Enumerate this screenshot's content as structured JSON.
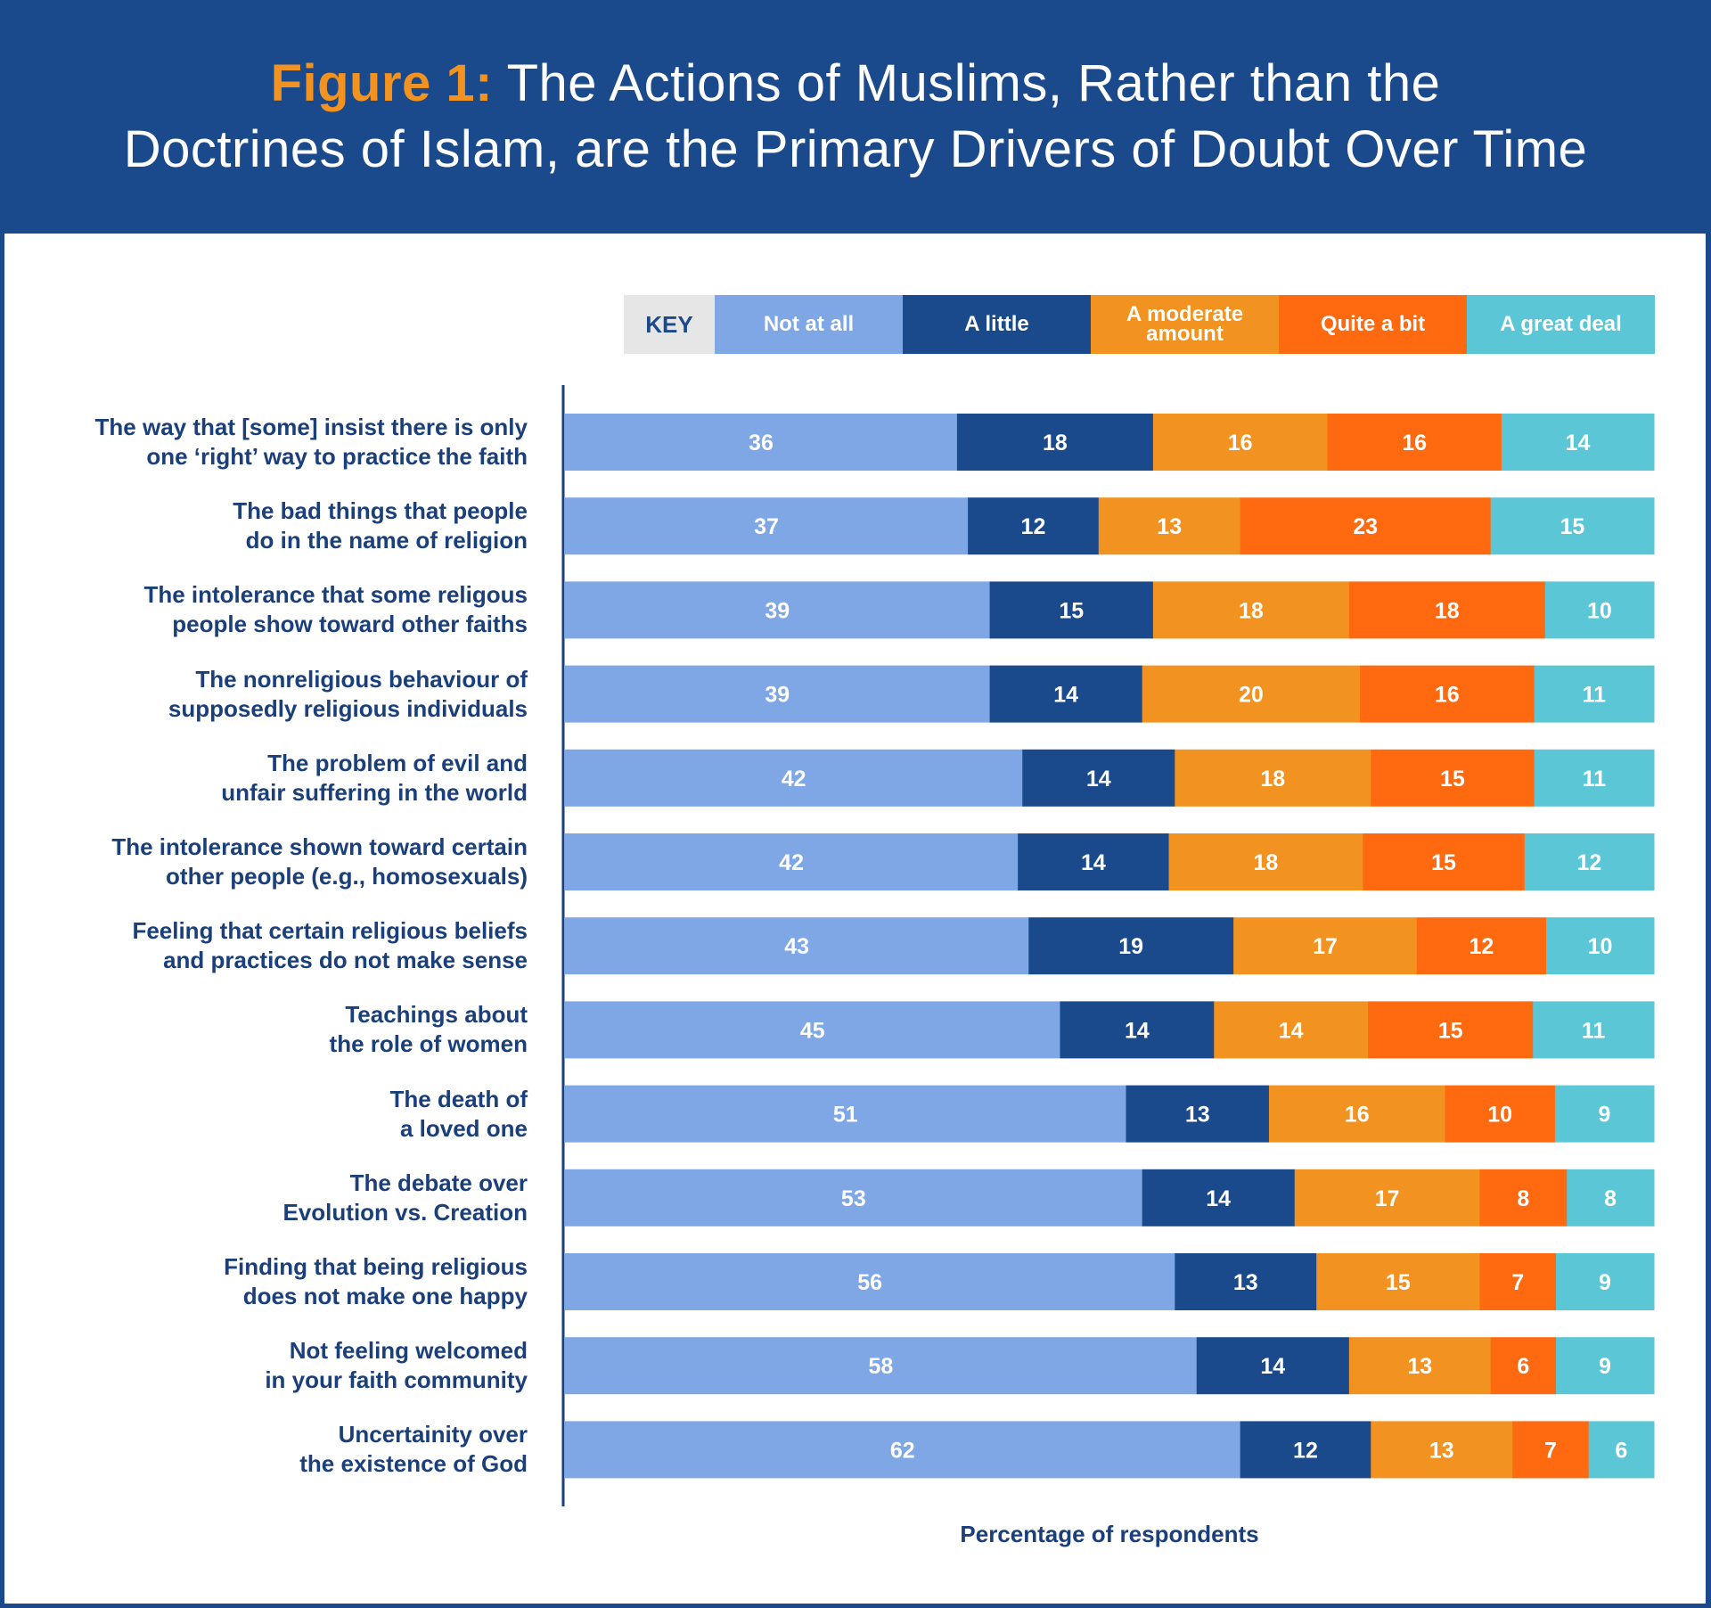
{
  "header": {
    "figure_label": "Figure 1:",
    "title_line1": "The Actions of Muslims, Rather than the",
    "title_line2": "Doctrines of Islam, are the Primary Drivers of Doubt Over Time"
  },
  "colors": {
    "header_bg": "#1a4a8c",
    "figure_label": "#f29220",
    "text": "#1a3f7a",
    "not_at_all": "#7fa7e5",
    "a_little": "#1a4a8c",
    "a_moderate_amount": "#f29220",
    "quite_a_bit": "#ff6a10",
    "a_great_deal": "#5bc6d6"
  },
  "chart_data": {
    "type": "bar",
    "orientation": "horizontal",
    "stacked": true,
    "xlabel": "Percentage of respondents",
    "legend_title": "KEY",
    "legend_placement": "top",
    "categories": [
      "The way that [some] insist there is only one ‘right’ way to practice the faith",
      "The bad things that people do in the name of religion",
      "The intolerance that some religous people show toward other faiths",
      "The nonreligious behaviour of supposedly religious individuals",
      "The problem of evil and unfair suffering in the world",
      "The intolerance shown toward certain other people (e.g., homosexuals)",
      "Feeling that certain religious beliefs and practices do not make sense",
      "Teachings about the role of women",
      "The death of a loved one",
      "The debate over Evolution vs. Creation",
      "Finding that being religious does not make one happy",
      "Not feeling welcomed in your faith community",
      "Uncertainity over the existence of God"
    ],
    "category_lines": [
      [
        "The way that [some] insist there is only",
        "one ‘right’ way to practice the faith"
      ],
      [
        "The bad things that people",
        "do in the name of religion"
      ],
      [
        "The intolerance that some religous",
        "people show toward other faiths"
      ],
      [
        "The nonreligious behaviour of",
        "supposedly religious individuals"
      ],
      [
        "The problem of evil and",
        "unfair suffering in the world"
      ],
      [
        "The intolerance shown toward certain",
        "other people (e.g., homosexuals)"
      ],
      [
        "Feeling that certain religious beliefs",
        "and practices do not make sense"
      ],
      [
        "Teachings about",
        "the role of women"
      ],
      [
        "The death of",
        "a loved one"
      ],
      [
        "The debate over",
        "Evolution vs. Creation"
      ],
      [
        "Finding that being religious",
        "does not make one happy"
      ],
      [
        "Not feeling welcomed",
        "in your faith community"
      ],
      [
        "Uncertainity over",
        "the existence of God"
      ]
    ],
    "series": [
      {
        "name": "Not at all",
        "values": [
          36,
          37,
          39,
          39,
          42,
          42,
          43,
          45,
          51,
          53,
          56,
          58,
          62
        ]
      },
      {
        "name": "A little",
        "values": [
          18,
          12,
          15,
          14,
          14,
          14,
          19,
          14,
          13,
          14,
          13,
          14,
          12
        ]
      },
      {
        "name": "A moderate amount",
        "values": [
          16,
          13,
          18,
          20,
          18,
          18,
          17,
          14,
          16,
          17,
          15,
          13,
          13
        ]
      },
      {
        "name": "Quite a bit",
        "values": [
          16,
          23,
          18,
          16,
          15,
          15,
          12,
          15,
          10,
          8,
          7,
          6,
          7
        ]
      },
      {
        "name": "A great deal",
        "values": [
          14,
          15,
          10,
          11,
          11,
          12,
          10,
          11,
          9,
          8,
          9,
          9,
          6
        ]
      }
    ]
  }
}
